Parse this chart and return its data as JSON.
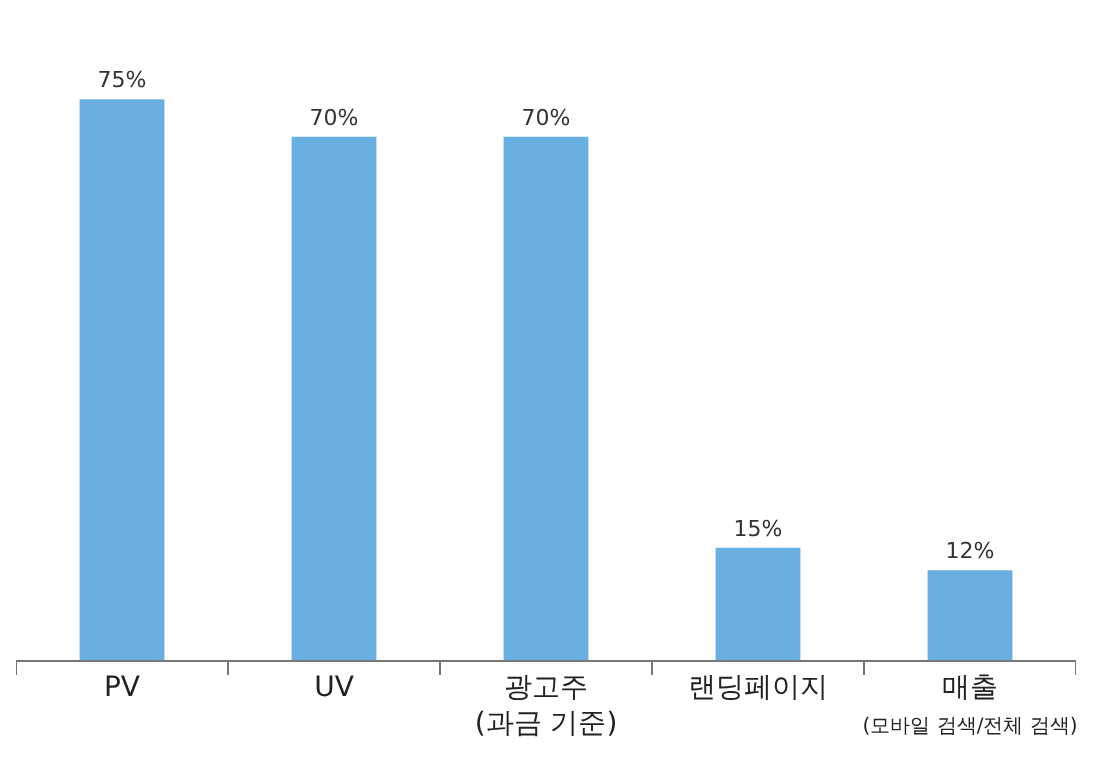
{
  "chart_data": {
    "type": "bar",
    "categories": [
      "PV",
      "UV",
      "광고주\n(과금 기준)",
      "랜딩페이지",
      "매출\n(모바일 검색/전체 검색)"
    ],
    "values": [
      75,
      70,
      70,
      15,
      12
    ],
    "color": "#6aafe1",
    "data_labels": true,
    "value_labels": [
      "75%",
      "70%",
      "70%",
      "15%",
      "12%"
    ]
  }
}
